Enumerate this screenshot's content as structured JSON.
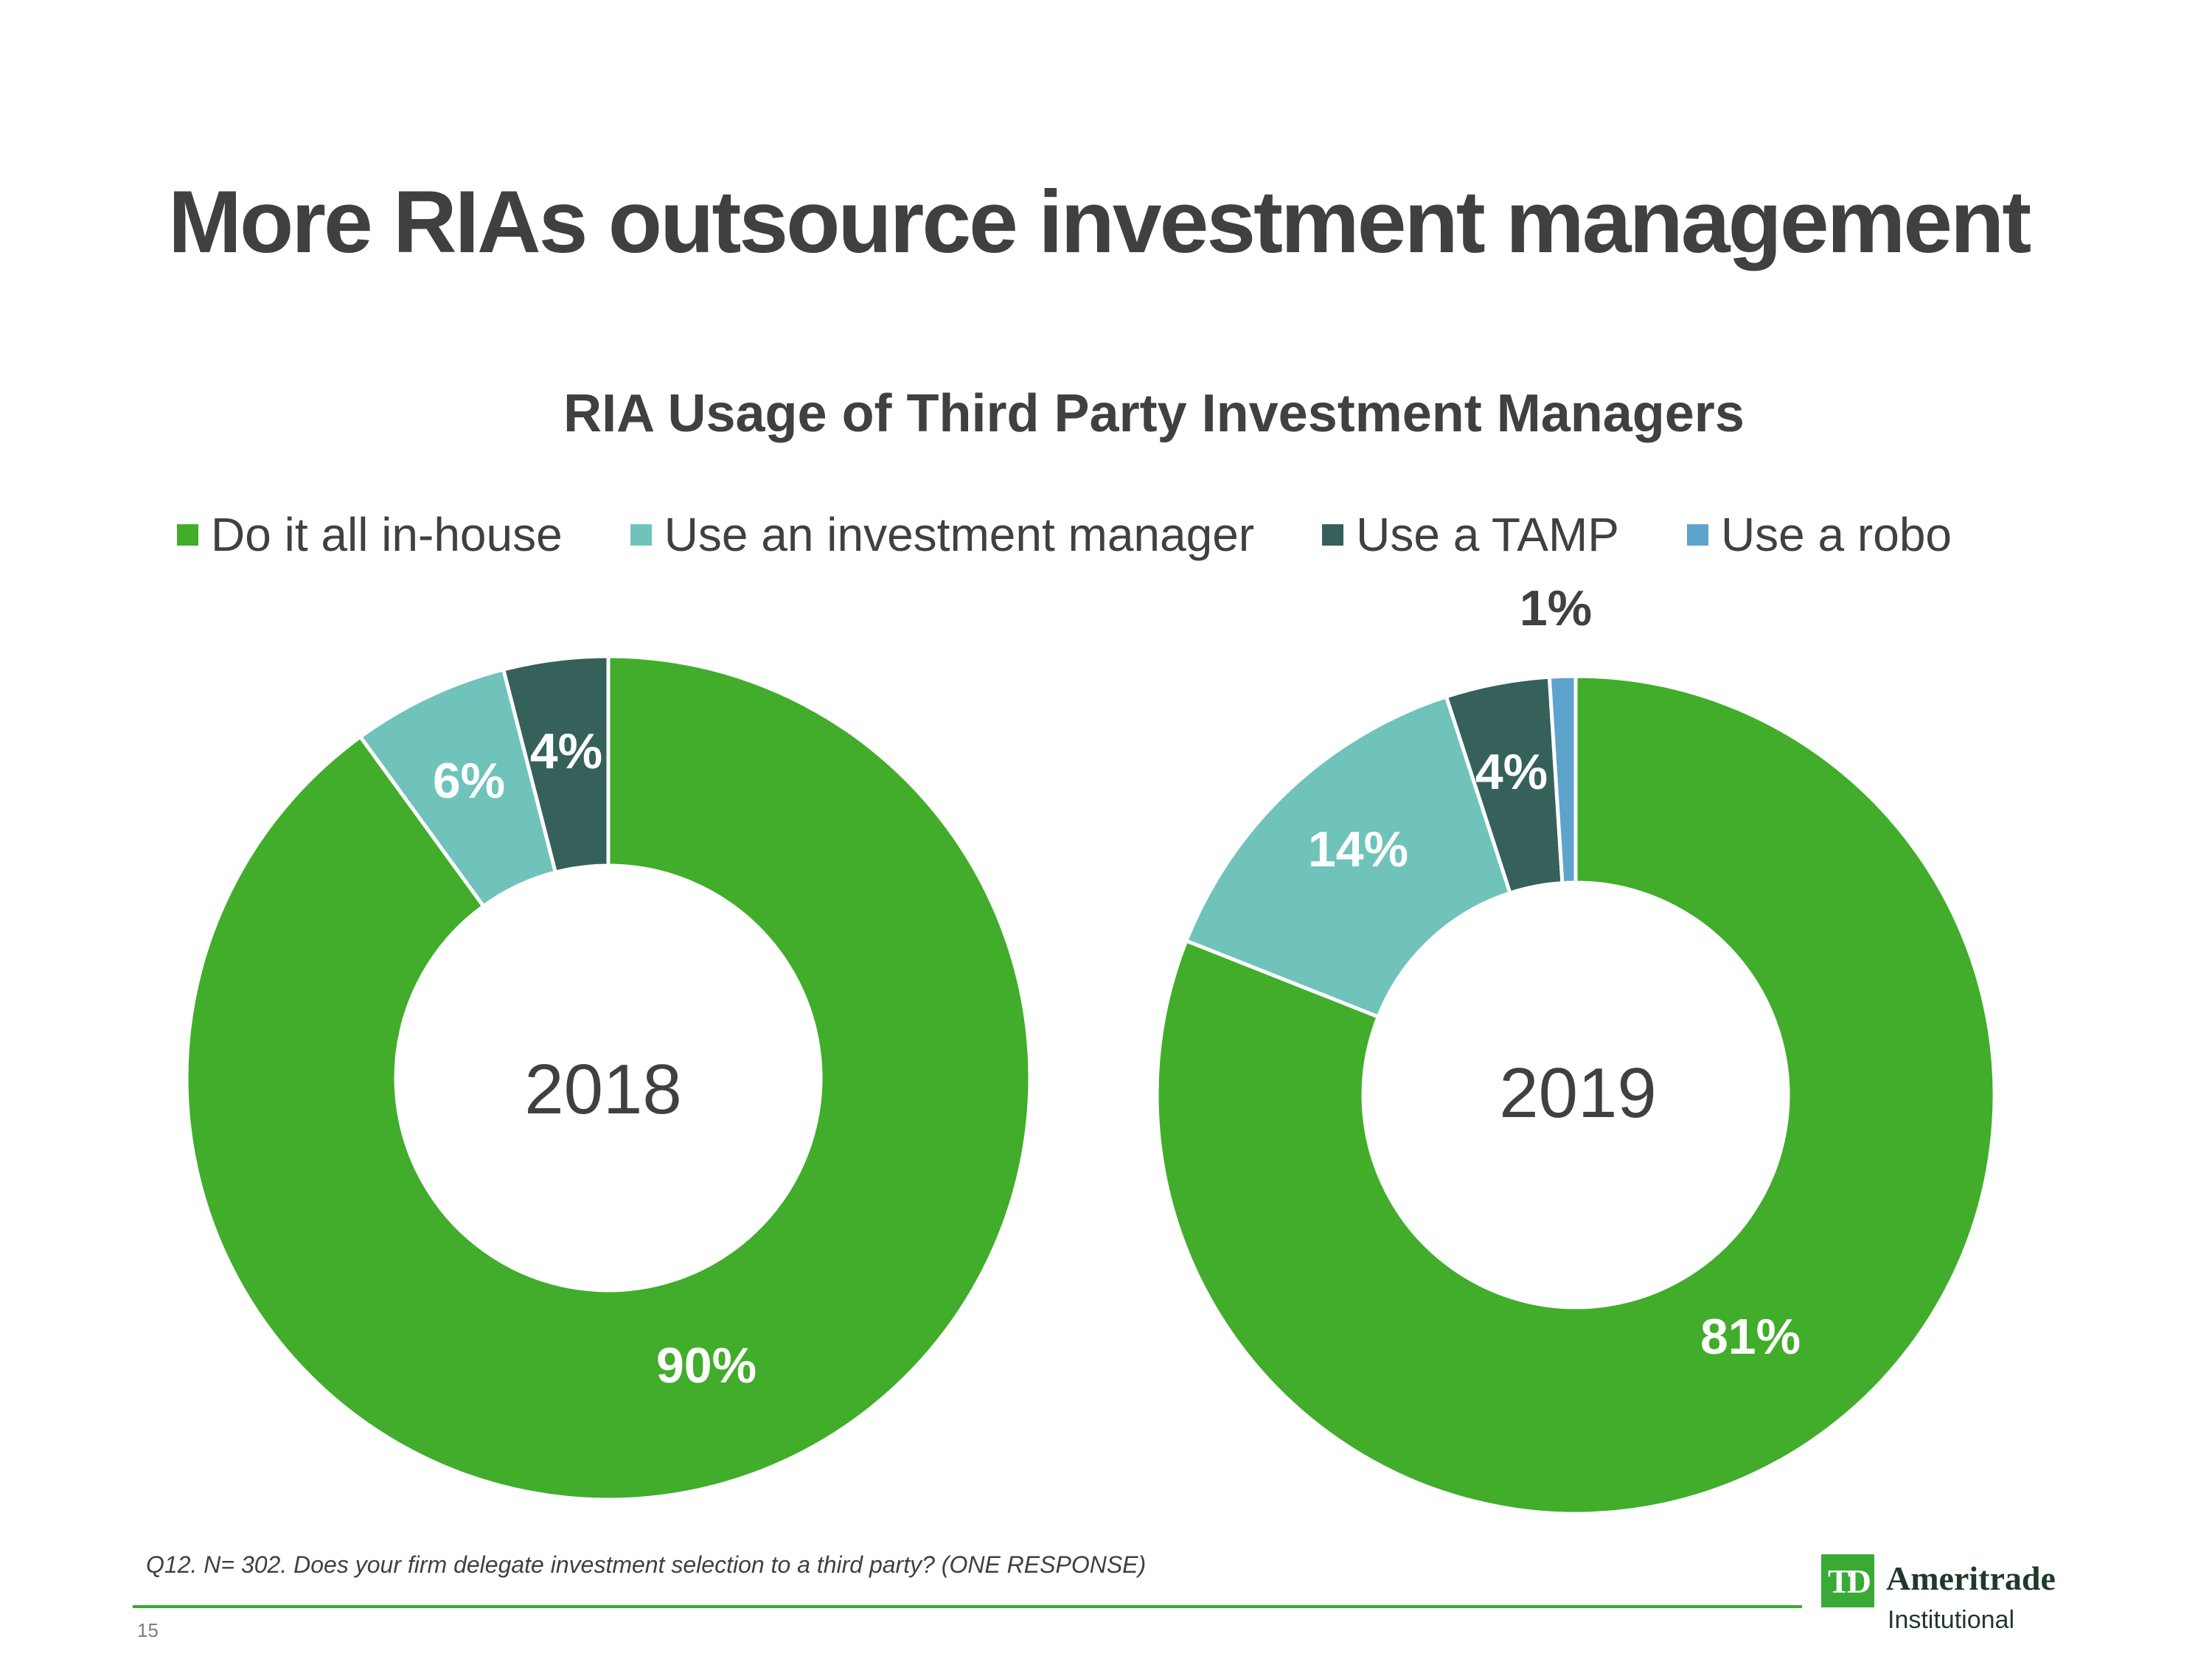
{
  "slide": {
    "title": "More RIAs outsource investment management",
    "footnote": "Q12. N= 302. Does your firm delegate investment selection to a third party? (ONE RESPONSE)",
    "page_number": "15",
    "logo": {
      "mark": "TD",
      "name": "Ameritrade",
      "sub": "Institutional"
    }
  },
  "chart_data": {
    "type": "donut",
    "title": "RIA Usage of Third Party Investment Managers",
    "legend_position": "top",
    "series": [
      {
        "name": "Do it all in-house",
        "color": "#41ad2b"
      },
      {
        "name": "Use an investment manager",
        "color": "#6fc3bb"
      },
      {
        "name": "Use a TAMP",
        "color": "#35615a"
      },
      {
        "name": "Use a robo",
        "color": "#5ea3cc"
      }
    ],
    "charts": [
      {
        "center_label": "2018",
        "values": [
          90,
          6,
          4,
          0
        ],
        "labels": [
          "90%",
          "6%",
          "4%",
          ""
        ]
      },
      {
        "center_label": "2019",
        "values": [
          81,
          14,
          4,
          1
        ],
        "labels": [
          "81%",
          "14%",
          "4%",
          "1%"
        ]
      }
    ]
  }
}
